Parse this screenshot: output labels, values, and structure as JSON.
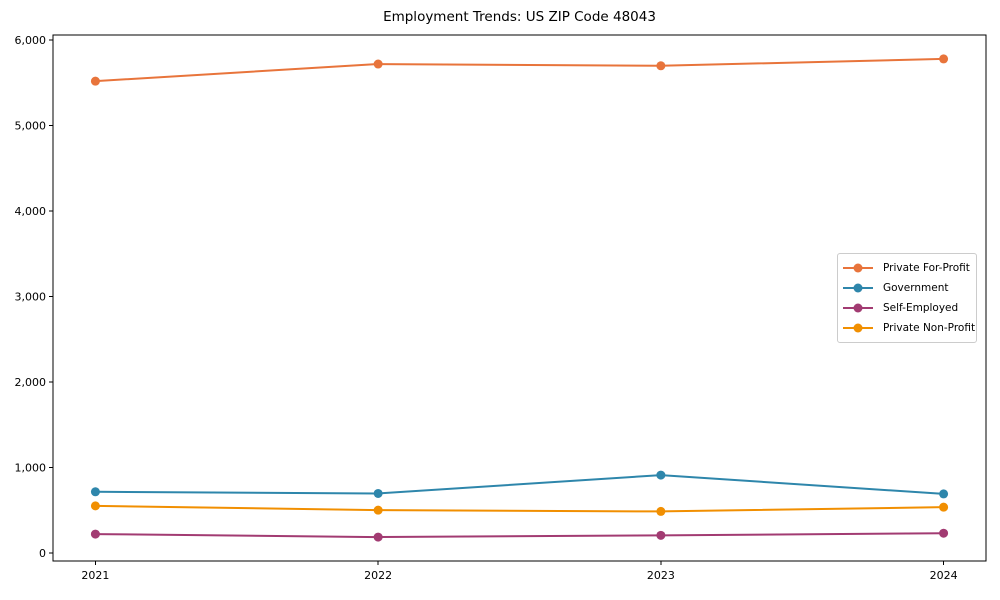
{
  "chart_data": {
    "type": "line",
    "title": "Employment Trends: US ZIP Code 48043",
    "x": [
      2021,
      2022,
      2023,
      2024
    ],
    "x_tick_labels": [
      "2021",
      "2022",
      "2023",
      "2024"
    ],
    "series": [
      {
        "name": "Private For-Profit",
        "color": "#E8743B",
        "values": [
          5520,
          5720,
          5700,
          5780
        ]
      },
      {
        "name": "Government",
        "color": "#2E86AB",
        "values": [
          715,
          695,
          910,
          690
        ]
      },
      {
        "name": "Self-Employed",
        "color": "#A23B72",
        "values": [
          220,
          185,
          205,
          230
        ]
      },
      {
        "name": "Private Non-Profit",
        "color": "#F18F01",
        "values": [
          550,
          500,
          485,
          535
        ]
      }
    ],
    "xlim": [
      2020.85,
      2024.15
    ],
    "ylim": [
      -95,
      6060
    ],
    "y_ticks": [
      0,
      1000,
      2000,
      3000,
      4000,
      5000,
      6000
    ],
    "y_tick_labels": [
      "0",
      "1,000",
      "2,000",
      "3,000",
      "4,000",
      "5,000",
      "6,000"
    ],
    "xlabel": "",
    "ylabel": "",
    "grid": false,
    "marker": "circle",
    "legend": {
      "position": "center right",
      "entries": [
        "Private For-Profit",
        "Government",
        "Self-Employed",
        "Private Non-Profit"
      ]
    },
    "axis_color": "#000000",
    "background_color": "#ffffff"
  }
}
